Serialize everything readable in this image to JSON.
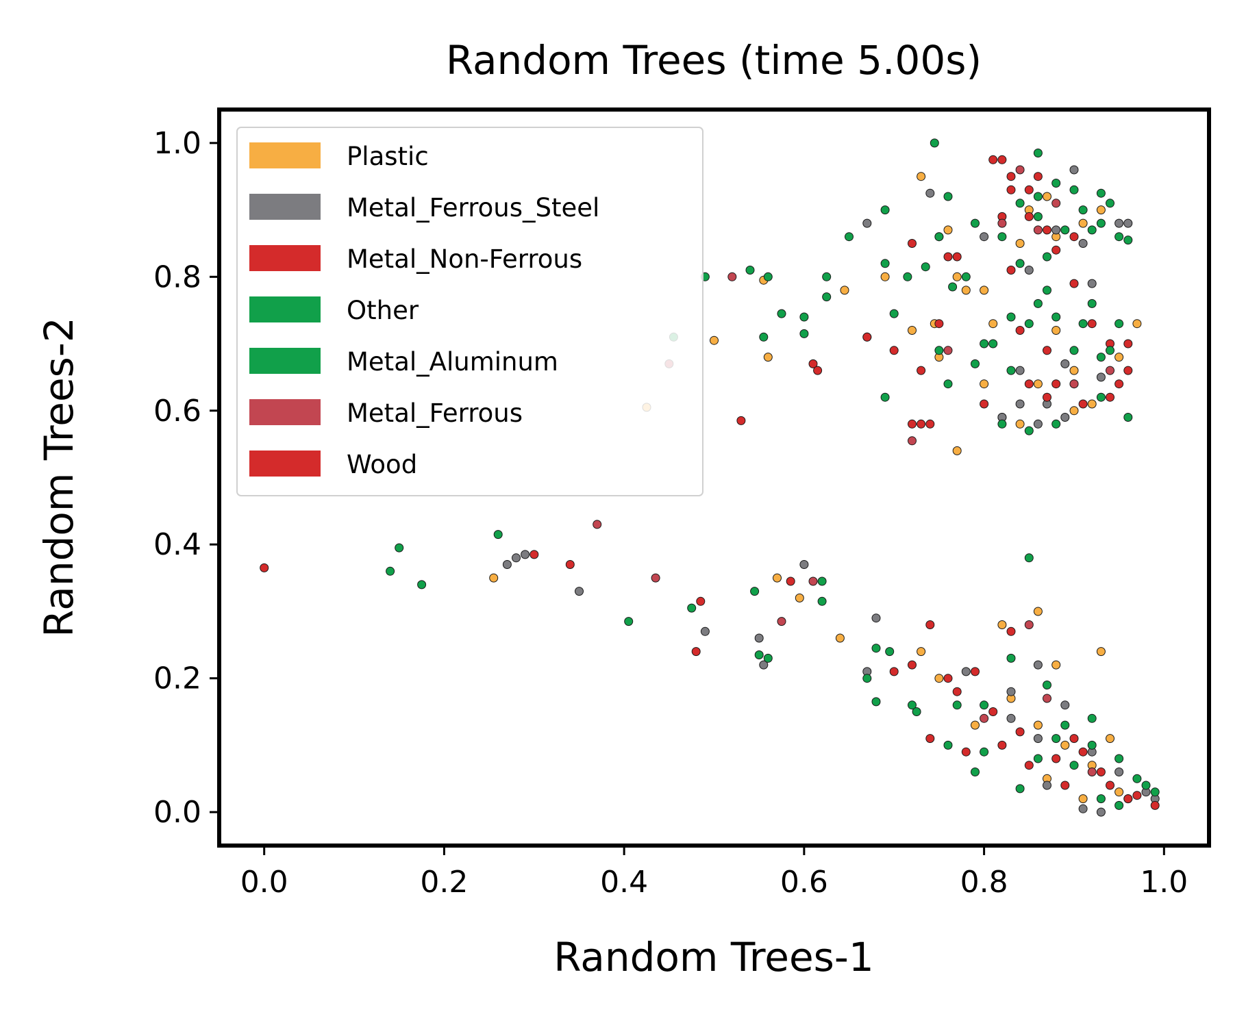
{
  "chart_data": {
    "type": "scatter",
    "title": "Random Trees (time 5.00s)",
    "xlabel": "Random Trees-1",
    "ylabel": "Random Trees-2",
    "xlim": [
      -0.05,
      1.05
    ],
    "ylim": [
      -0.05,
      1.05
    ],
    "x_ticks": [
      0.0,
      0.2,
      0.4,
      0.6,
      0.8,
      1.0
    ],
    "y_ticks": [
      0.0,
      0.2,
      0.4,
      0.6,
      0.8,
      1.0
    ],
    "x_tick_labels": [
      "0.0",
      "0.2",
      "0.4",
      "0.6",
      "0.8",
      "1.0"
    ],
    "y_tick_labels": [
      "0.0",
      "0.2",
      "0.4",
      "0.6",
      "0.8",
      "1.0"
    ],
    "grid": false,
    "legend_position": "upper-left",
    "series": [
      {
        "name": "Plastic",
        "color": "#f7ae43",
        "points": [
          [
            0.73,
            0.95
          ],
          [
            0.745,
            0.73
          ],
          [
            0.75,
            0.68
          ],
          [
            0.77,
            0.54
          ],
          [
            0.72,
            0.72
          ],
          [
            0.77,
            0.8
          ],
          [
            0.78,
            0.78
          ],
          [
            0.86,
            0.3
          ],
          [
            0.255,
            0.35
          ],
          [
            0.57,
            0.35
          ],
          [
            0.64,
            0.26
          ],
          [
            0.425,
            0.605
          ],
          [
            0.5,
            0.705
          ],
          [
            0.56,
            0.68
          ],
          [
            0.555,
            0.795
          ],
          [
            0.595,
            0.32
          ],
          [
            0.645,
            0.78
          ],
          [
            0.73,
            0.24
          ],
          [
            0.69,
            0.8
          ],
          [
            0.93,
            0.24
          ],
          [
            0.87,
            0.92
          ],
          [
            0.88,
            0.72
          ],
          [
            0.9,
            0.66
          ],
          [
            0.92,
            0.61
          ],
          [
            0.95,
            0.68
          ],
          [
            0.84,
            0.85
          ],
          [
            0.86,
            0.64
          ],
          [
            0.82,
            0.59
          ],
          [
            0.88,
            0.22
          ],
          [
            0.83,
            0.17
          ],
          [
            0.86,
            0.13
          ],
          [
            0.89,
            0.1
          ],
          [
            0.92,
            0.07
          ],
          [
            0.95,
            0.03
          ],
          [
            0.8,
            0.64
          ],
          [
            0.84,
            0.58
          ],
          [
            0.91,
            0.88
          ],
          [
            0.85,
            0.9
          ],
          [
            0.79,
            0.13
          ],
          [
            0.75,
            0.2
          ],
          [
            0.82,
            0.28
          ],
          [
            0.97,
            0.73
          ],
          [
            0.87,
            0.05
          ],
          [
            0.94,
            0.11
          ],
          [
            0.9,
            0.6
          ],
          [
            0.93,
            0.9
          ],
          [
            0.76,
            0.87
          ],
          [
            0.81,
            0.73
          ],
          [
            0.88,
            0.86
          ],
          [
            0.96,
            0.02
          ],
          [
            0.91,
            0.02
          ],
          [
            0.8,
            0.78
          ]
        ]
      },
      {
        "name": "Metal_Ferrous_Steel",
        "color": "#7c7c80",
        "points": [
          [
            0.28,
            0.38
          ],
          [
            0.27,
            0.37
          ],
          [
            0.29,
            0.385
          ],
          [
            0.35,
            0.33
          ],
          [
            0.49,
            0.27
          ],
          [
            0.55,
            0.26
          ],
          [
            0.555,
            0.22
          ],
          [
            0.6,
            0.37
          ],
          [
            0.67,
            0.88
          ],
          [
            0.74,
            0.925
          ],
          [
            0.68,
            0.29
          ],
          [
            0.67,
            0.21
          ],
          [
            0.86,
            0.22
          ],
          [
            0.82,
            0.59
          ],
          [
            0.86,
            0.58
          ],
          [
            0.9,
            0.96
          ],
          [
            0.91,
            0.85
          ],
          [
            0.92,
            0.79
          ],
          [
            0.84,
            0.66
          ],
          [
            0.87,
            0.61
          ],
          [
            0.93,
            0.0
          ],
          [
            0.91,
            0.005
          ],
          [
            0.88,
            0.87
          ],
          [
            0.95,
            0.88
          ],
          [
            0.85,
            0.81
          ],
          [
            0.89,
            0.67
          ],
          [
            0.93,
            0.65
          ],
          [
            0.78,
            0.21
          ],
          [
            0.83,
            0.14
          ],
          [
            0.86,
            0.11
          ],
          [
            0.89,
            0.16
          ],
          [
            0.92,
            0.09
          ],
          [
            0.95,
            0.06
          ],
          [
            0.98,
            0.03
          ],
          [
            0.8,
            0.86
          ],
          [
            0.96,
            0.88
          ],
          [
            0.84,
            0.61
          ],
          [
            0.89,
            0.59
          ],
          [
            0.75,
            0.86
          ],
          [
            0.99,
            0.02
          ],
          [
            0.87,
            0.04
          ],
          [
            0.83,
            0.18
          ]
        ]
      },
      {
        "name": "Metal_Non-Ferrous",
        "color": "#d42b2b",
        "points": [
          [
            0.0,
            0.365
          ],
          [
            0.3,
            0.385
          ],
          [
            0.34,
            0.37
          ],
          [
            0.48,
            0.24
          ],
          [
            0.53,
            0.585
          ],
          [
            0.61,
            0.67
          ],
          [
            0.615,
            0.66
          ],
          [
            0.585,
            0.345
          ],
          [
            0.67,
            0.71
          ],
          [
            0.72,
            0.58
          ],
          [
            0.73,
            0.58
          ],
          [
            0.74,
            0.58
          ],
          [
            0.75,
            0.73
          ],
          [
            0.76,
            0.83
          ],
          [
            0.72,
            0.85
          ],
          [
            0.82,
            0.975
          ],
          [
            0.83,
            0.93
          ],
          [
            0.86,
            0.95
          ],
          [
            0.85,
            0.89
          ],
          [
            0.87,
            0.87
          ],
          [
            0.88,
            0.84
          ],
          [
            0.9,
            0.79
          ],
          [
            0.92,
            0.73
          ],
          [
            0.94,
            0.7
          ],
          [
            0.96,
            0.66
          ],
          [
            0.85,
            0.64
          ],
          [
            0.87,
            0.62
          ],
          [
            0.8,
            0.61
          ],
          [
            0.83,
            0.27
          ],
          [
            0.74,
            0.28
          ],
          [
            0.7,
            0.21
          ],
          [
            0.77,
            0.18
          ],
          [
            0.81,
            0.15
          ],
          [
            0.84,
            0.12
          ],
          [
            0.88,
            0.08
          ],
          [
            0.9,
            0.11
          ],
          [
            0.93,
            0.06
          ],
          [
            0.96,
            0.02
          ],
          [
            0.99,
            0.01
          ],
          [
            0.72,
            0.22
          ],
          [
            0.76,
            0.2
          ],
          [
            0.79,
            0.21
          ],
          [
            0.82,
            0.1
          ],
          [
            0.85,
            0.07
          ],
          [
            0.89,
            0.04
          ],
          [
            0.74,
            0.11
          ],
          [
            0.78,
            0.09
          ],
          [
            0.82,
            0.89
          ],
          [
            0.83,
            0.81
          ],
          [
            0.9,
            0.86
          ],
          [
            0.95,
            0.64
          ],
          [
            0.87,
            0.69
          ],
          [
            0.91,
            0.61
          ],
          [
            0.84,
            0.72
          ],
          [
            0.88,
            0.64
          ]
        ]
      },
      {
        "name": "Other",
        "color": "#11a04a",
        "points": [
          [
            0.14,
            0.36
          ],
          [
            0.15,
            0.395
          ],
          [
            0.175,
            0.34
          ],
          [
            0.26,
            0.415
          ],
          [
            0.405,
            0.285
          ],
          [
            0.475,
            0.305
          ],
          [
            0.545,
            0.33
          ],
          [
            0.55,
            0.235
          ],
          [
            0.56,
            0.23
          ],
          [
            0.62,
            0.345
          ],
          [
            0.62,
            0.315
          ],
          [
            0.745,
            1.0
          ],
          [
            0.76,
            0.92
          ],
          [
            0.69,
            0.9
          ],
          [
            0.75,
            0.86
          ],
          [
            0.65,
            0.86
          ],
          [
            0.49,
            0.8
          ],
          [
            0.54,
            0.81
          ],
          [
            0.56,
            0.8
          ],
          [
            0.575,
            0.745
          ],
          [
            0.6,
            0.74
          ],
          [
            0.625,
            0.8
          ],
          [
            0.625,
            0.77
          ],
          [
            0.555,
            0.71
          ],
          [
            0.6,
            0.715
          ],
          [
            0.69,
            0.82
          ],
          [
            0.7,
            0.745
          ],
          [
            0.715,
            0.8
          ],
          [
            0.735,
            0.815
          ],
          [
            0.765,
            0.785
          ],
          [
            0.78,
            0.8
          ],
          [
            0.75,
            0.69
          ],
          [
            0.76,
            0.64
          ],
          [
            0.69,
            0.62
          ],
          [
            0.8,
            0.7
          ],
          [
            0.85,
            0.38
          ],
          [
            0.86,
            0.985
          ],
          [
            0.88,
            0.94
          ],
          [
            0.9,
            0.93
          ],
          [
            0.93,
            0.925
          ],
          [
            0.91,
            0.9
          ],
          [
            0.95,
            0.86
          ],
          [
            0.96,
            0.855
          ],
          [
            0.93,
            0.88
          ],
          [
            0.82,
            0.86
          ],
          [
            0.84,
            0.82
          ],
          [
            0.86,
            0.76
          ],
          [
            0.88,
            0.74
          ],
          [
            0.91,
            0.73
          ],
          [
            0.94,
            0.69
          ],
          [
            0.96,
            0.59
          ],
          [
            0.93,
            0.62
          ],
          [
            0.9,
            0.64
          ],
          [
            0.88,
            0.58
          ],
          [
            0.85,
            0.57
          ],
          [
            0.82,
            0.58
          ],
          [
            0.79,
            0.67
          ],
          [
            0.68,
            0.245
          ],
          [
            0.695,
            0.24
          ],
          [
            0.67,
            0.2
          ],
          [
            0.68,
            0.165
          ],
          [
            0.72,
            0.16
          ],
          [
            0.725,
            0.15
          ],
          [
            0.76,
            0.1
          ],
          [
            0.8,
            0.09
          ],
          [
            0.79,
            0.06
          ],
          [
            0.84,
            0.035
          ],
          [
            0.89,
            0.13
          ],
          [
            0.92,
            0.14
          ],
          [
            0.95,
            0.08
          ],
          [
            0.98,
            0.04
          ],
          [
            0.95,
            0.01
          ],
          [
            0.93,
            0.02
          ],
          [
            0.87,
            0.19
          ],
          [
            0.83,
            0.23
          ],
          [
            0.8,
            0.16
          ],
          [
            0.86,
            0.08
          ],
          [
            0.9,
            0.07
          ],
          [
            0.92,
            0.1
          ],
          [
            0.97,
            0.05
          ],
          [
            0.99,
            0.03
          ],
          [
            0.81,
            0.7
          ],
          [
            0.83,
            0.74
          ],
          [
            0.87,
            0.78
          ],
          [
            0.92,
            0.76
          ],
          [
            0.95,
            0.73
          ],
          [
            0.86,
            0.89
          ],
          [
            0.89,
            0.87
          ],
          [
            0.92,
            0.87
          ],
          [
            0.84,
            0.91
          ],
          [
            0.79,
            0.88
          ],
          [
            0.83,
            0.66
          ],
          [
            0.9,
            0.69
          ]
        ]
      },
      {
        "name": "Metal_Aluminum",
        "color": "#11a04a",
        "points": [
          [
            0.455,
            0.71
          ],
          [
            0.86,
            0.92
          ],
          [
            0.87,
            0.83
          ],
          [
            0.93,
            0.68
          ],
          [
            0.94,
            0.91
          ],
          [
            0.85,
            0.73
          ],
          [
            0.77,
            0.16
          ],
          [
            0.88,
            0.11
          ]
        ]
      },
      {
        "name": "Metal_Ferrous",
        "color": "#c24651",
        "points": [
          [
            0.37,
            0.43
          ],
          [
            0.435,
            0.35
          ],
          [
            0.45,
            0.67
          ],
          [
            0.52,
            0.8
          ],
          [
            0.575,
            0.285
          ],
          [
            0.61,
            0.345
          ],
          [
            0.72,
            0.555
          ],
          [
            0.76,
            0.69
          ],
          [
            0.84,
            0.96
          ],
          [
            0.86,
            0.87
          ],
          [
            0.88,
            0.91
          ],
          [
            0.85,
            0.28
          ],
          [
            0.92,
            0.06
          ],
          [
            0.8,
            0.14
          ],
          [
            0.9,
            0.64
          ],
          [
            0.94,
            0.66
          ],
          [
            0.82,
            0.88
          ],
          [
            0.87,
            0.17
          ]
        ]
      },
      {
        "name": "Wood",
        "color": "#d42b2b",
        "points": [
          [
            0.485,
            0.315
          ],
          [
            0.67,
            0.71
          ],
          [
            0.7,
            0.69
          ],
          [
            0.73,
            0.66
          ],
          [
            0.77,
            0.83
          ],
          [
            0.81,
            0.975
          ],
          [
            0.83,
            0.95
          ],
          [
            0.85,
            0.93
          ],
          [
            0.94,
            0.62
          ],
          [
            0.96,
            0.7
          ],
          [
            0.91,
            0.09
          ],
          [
            0.94,
            0.04
          ],
          [
            0.97,
            0.025
          ]
        ]
      }
    ]
  }
}
